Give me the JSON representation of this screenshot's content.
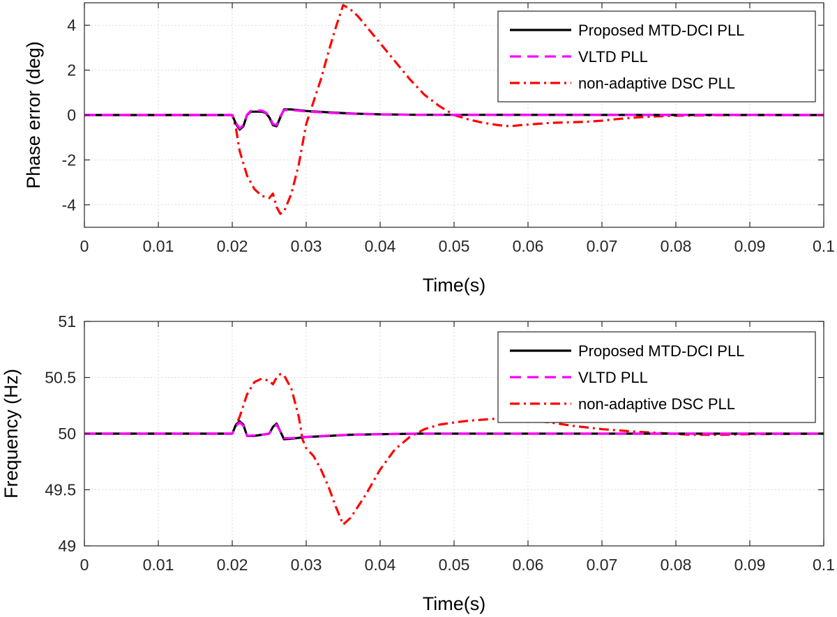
{
  "chart_data": [
    {
      "type": "line",
      "title": "",
      "xlabel": "Time(s)",
      "ylabel": "Phase error (deg)",
      "xlim": [
        0,
        0.1
      ],
      "ylim": [
        -5,
        5
      ],
      "xticks": [
        0,
        0.01,
        0.02,
        0.03,
        0.04,
        0.05,
        0.06,
        0.07,
        0.08,
        0.09,
        0.1
      ],
      "xtick_labels": [
        "0",
        "0.01",
        "0.02",
        "0.03",
        "0.04",
        "0.05",
        "0.06",
        "0.07",
        "0.08",
        "0.09",
        "0.1"
      ],
      "yticks": [
        -4,
        -2,
        0,
        2,
        4
      ],
      "ytick_labels": [
        "-4",
        "-2",
        "0",
        "2",
        "4"
      ],
      "grid": true,
      "legend": "top-right",
      "series": [
        {
          "name": "non-adaptive DSC PLL",
          "color": "#ff0000",
          "style": "dashdot",
          "x": [
            0,
            0.02,
            0.0205,
            0.021,
            0.022,
            0.023,
            0.024,
            0.025,
            0.0255,
            0.026,
            0.0265,
            0.027,
            0.028,
            0.029,
            0.03,
            0.031,
            0.032,
            0.033,
            0.034,
            0.035,
            0.036,
            0.037,
            0.038,
            0.04,
            0.042,
            0.044,
            0.046,
            0.048,
            0.05,
            0.052,
            0.054,
            0.056,
            0.0575,
            0.059,
            0.061,
            0.063,
            0.065,
            0.068,
            0.07,
            0.072,
            0.075,
            0.078,
            0.08,
            0.085,
            0.09,
            0.1
          ],
          "y": [
            0,
            0,
            -0.6,
            -1.6,
            -2.7,
            -3.3,
            -3.6,
            -3.7,
            -3.5,
            -4.1,
            -4.4,
            -4.3,
            -3.5,
            -2.2,
            -0.4,
            0.6,
            1.6,
            2.8,
            3.9,
            4.9,
            4.7,
            4.4,
            4.0,
            3.2,
            2.4,
            1.6,
            0.9,
            0.4,
            0.0,
            -0.2,
            -0.35,
            -0.45,
            -0.5,
            -0.45,
            -0.4,
            -0.35,
            -0.33,
            -0.3,
            -0.25,
            -0.18,
            -0.1,
            -0.05,
            -0.03,
            -0.01,
            0,
            0
          ]
        },
        {
          "name": "Proposed MTD-DCI PLL",
          "color": "#000000",
          "style": "solid",
          "x": [
            0,
            0.02,
            0.0205,
            0.021,
            0.0215,
            0.022,
            0.0225,
            0.023,
            0.024,
            0.0245,
            0.025,
            0.0255,
            0.026,
            0.0265,
            0.027,
            0.028,
            0.03,
            0.033,
            0.036,
            0.04,
            0.045,
            0.1
          ],
          "y": [
            0,
            0,
            -0.4,
            -0.65,
            -0.5,
            0.0,
            0.15,
            0.15,
            0.15,
            0.1,
            -0.1,
            -0.45,
            -0.5,
            -0.1,
            0.25,
            0.25,
            0.18,
            0.12,
            0.07,
            0.03,
            0.01,
            0
          ]
        },
        {
          "name": "VLTD PLL",
          "color": "#ff00ff",
          "style": "dashed",
          "x": [
            0,
            0.02,
            0.0205,
            0.021,
            0.0215,
            0.022,
            0.0225,
            0.023,
            0.024,
            0.0245,
            0.025,
            0.0255,
            0.026,
            0.0265,
            0.027,
            0.028,
            0.03,
            0.033,
            0.036,
            0.04,
            0.045,
            0.1
          ],
          "y": [
            0,
            0,
            -0.35,
            -0.6,
            -0.45,
            0.02,
            0.18,
            0.2,
            0.2,
            0.12,
            -0.05,
            -0.4,
            -0.45,
            -0.05,
            0.22,
            0.22,
            0.16,
            0.1,
            0.06,
            0.03,
            0.01,
            0
          ]
        }
      ]
    },
    {
      "type": "line",
      "title": "",
      "xlabel": "Time(s)",
      "ylabel": "Frequency (Hz)",
      "xlim": [
        0,
        0.1
      ],
      "ylim": [
        49,
        51
      ],
      "xticks": [
        0,
        0.01,
        0.02,
        0.03,
        0.04,
        0.05,
        0.06,
        0.07,
        0.08,
        0.09,
        0.1
      ],
      "xtick_labels": [
        "0",
        "0.01",
        "0.02",
        "0.03",
        "0.04",
        "0.05",
        "0.06",
        "0.07",
        "0.08",
        "0.09",
        "0.1"
      ],
      "yticks": [
        49,
        49.5,
        50,
        50.5,
        51
      ],
      "ytick_labels": [
        "49",
        "49.5",
        "50",
        "50.5",
        "51"
      ],
      "grid": true,
      "legend": "top-right",
      "series": [
        {
          "name": "non-adaptive DSC PLL",
          "color": "#ff0000",
          "style": "dashdot",
          "x": [
            0,
            0.02,
            0.021,
            0.022,
            0.023,
            0.024,
            0.025,
            0.0255,
            0.026,
            0.0265,
            0.027,
            0.028,
            0.029,
            0.0295,
            0.03,
            0.031,
            0.032,
            0.033,
            0.034,
            0.035,
            0.036,
            0.038,
            0.04,
            0.042,
            0.044,
            0.046,
            0.048,
            0.05,
            0.052,
            0.054,
            0.056,
            0.058,
            0.06,
            0.063,
            0.066,
            0.07,
            0.074,
            0.078,
            0.082,
            0.086,
            0.09,
            0.1
          ],
          "y": [
            50,
            50,
            50.15,
            50.35,
            50.46,
            50.49,
            50.47,
            50.44,
            50.5,
            50.53,
            50.52,
            50.4,
            50.15,
            49.95,
            49.87,
            49.8,
            49.68,
            49.53,
            49.35,
            49.19,
            49.25,
            49.45,
            49.68,
            49.86,
            49.97,
            50.04,
            50.08,
            50.1,
            50.115,
            50.125,
            50.135,
            50.13,
            50.12,
            50.1,
            50.07,
            50.04,
            50.02,
            50.005,
            49.99,
            49.99,
            49.995,
            50
          ]
        },
        {
          "name": "Proposed MTD-DCI PLL",
          "color": "#000000",
          "style": "solid",
          "x": [
            0,
            0.02,
            0.0205,
            0.021,
            0.0215,
            0.022,
            0.023,
            0.024,
            0.025,
            0.0255,
            0.026,
            0.0265,
            0.027,
            0.028,
            0.03,
            0.033,
            0.036,
            0.04,
            0.045,
            0.05,
            0.1
          ],
          "y": [
            50,
            50,
            50.08,
            50.11,
            50.08,
            49.98,
            49.98,
            49.99,
            50.0,
            50.06,
            50.09,
            50.02,
            49.95,
            49.955,
            49.97,
            49.98,
            49.99,
            49.995,
            50.0,
            50.0,
            50
          ]
        },
        {
          "name": "VLTD PLL",
          "color": "#ff00ff",
          "style": "dashed",
          "x": [
            0,
            0.02,
            0.0205,
            0.021,
            0.0215,
            0.022,
            0.023,
            0.024,
            0.025,
            0.0255,
            0.026,
            0.0265,
            0.027,
            0.028,
            0.03,
            0.033,
            0.036,
            0.04,
            0.045,
            0.05,
            0.1
          ],
          "y": [
            50,
            50,
            50.07,
            50.1,
            50.07,
            49.98,
            49.985,
            49.99,
            50.0,
            50.05,
            50.08,
            50.02,
            49.96,
            49.96,
            49.972,
            49.982,
            49.99,
            49.996,
            50.0,
            50.0,
            50
          ]
        }
      ],
      "legend_order": [
        "Proposed MTD-DCI PLL",
        "VLTD PLL",
        "non-adaptive DSC PLL"
      ]
    }
  ],
  "legend_order": [
    "Proposed MTD-DCI PLL",
    "VLTD PLL",
    "non-adaptive DSC PLL"
  ]
}
